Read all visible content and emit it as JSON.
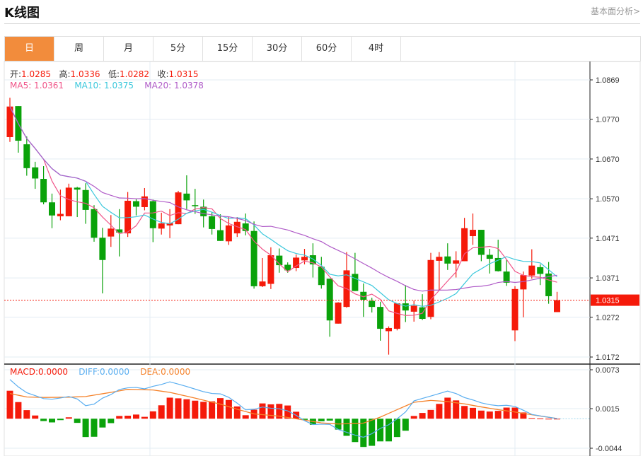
{
  "header": {
    "title": "K线图",
    "link": "基本面分析>"
  },
  "tabs": [
    {
      "label": "日",
      "active": true
    },
    {
      "label": "周"
    },
    {
      "label": "月"
    },
    {
      "label": "5分"
    },
    {
      "label": "15分"
    },
    {
      "label": "30分"
    },
    {
      "label": "60分"
    },
    {
      "label": "4时"
    }
  ],
  "ohlc_legend": {
    "open_label": "开:",
    "open": "1.0285",
    "high_label": "高:",
    "high": "1.0336",
    "low_label": "低:",
    "low": "1.0282",
    "close_label": "收:",
    "close": "1.0315"
  },
  "ma_legend": {
    "ma5": "MA5: 1.0361",
    "ma10": "MA10: 1.0375",
    "ma20": "MA20: 1.0378"
  },
  "macd_legend": {
    "macd": "MACD:0.0000",
    "diff": "DIFF:0.0000",
    "dea": "DEA:0.0000"
  },
  "colors": {
    "up": "#f51a0a",
    "down": "#0aa20a",
    "ma5": "#f0568a",
    "ma10": "#3cc8dc",
    "ma20": "#b05cc8",
    "active_tab": "#f28c3c",
    "dea": "#f5822a",
    "diff": "#5aaef0"
  },
  "chart_data": {
    "type": "candlestick",
    "price_ticks": [
      "1.0869",
      "1.0770",
      "1.0670",
      "1.0570",
      "1.0471",
      "1.0371",
      "1.0272",
      "1.0172"
    ],
    "price_range": [
      1.0172,
      1.0869
    ],
    "last_price": "1.0315",
    "macd_ticks": [
      "0.0073",
      "0.0015",
      "-0.0044"
    ],
    "macd_range": [
      -0.0044,
      0.0073
    ],
    "candles": [
      [
        1.0725,
        1.0824,
        1.0713,
        1.0802
      ],
      [
        1.0803,
        1.0803,
        1.0686,
        1.0716
      ],
      [
        1.0707,
        1.0727,
        1.0628,
        1.0647
      ],
      [
        1.0649,
        1.0663,
        1.0595,
        1.0621
      ],
      [
        1.062,
        1.0652,
        1.0556,
        1.0561
      ],
      [
        1.0561,
        1.0583,
        1.0496,
        1.0528
      ],
      [
        1.0526,
        1.0593,
        1.0516,
        1.0532
      ],
      [
        1.0526,
        1.0608,
        1.0526,
        1.0598
      ],
      [
        1.0598,
        1.06,
        1.0524,
        1.0593
      ],
      [
        1.0592,
        1.0609,
        1.0507,
        1.0542
      ],
      [
        1.0544,
        1.0554,
        1.0462,
        1.0472
      ],
      [
        1.0472,
        1.0497,
        1.0332,
        1.0416
      ],
      [
        1.0475,
        1.0529,
        1.0449,
        1.0495
      ],
      [
        1.0493,
        1.0544,
        1.0425,
        1.0485
      ],
      [
        1.0483,
        1.0587,
        1.0474,
        1.0565
      ],
      [
        1.0564,
        1.0569,
        1.0528,
        1.055
      ],
      [
        1.0549,
        1.0597,
        1.0541,
        1.0576
      ],
      [
        1.0564,
        1.0568,
        1.0461,
        1.0496
      ],
      [
        1.0495,
        1.0535,
        1.048,
        1.0508
      ],
      [
        1.0503,
        1.0544,
        1.0471,
        1.0509
      ],
      [
        1.0506,
        1.059,
        1.0506,
        1.0586
      ],
      [
        1.0583,
        1.0629,
        1.0544,
        1.0566
      ],
      [
        1.0554,
        1.0595,
        1.0532,
        1.0552
      ],
      [
        1.055,
        1.0568,
        1.0498,
        1.0526
      ],
      [
        1.0526,
        1.0537,
        1.048,
        1.0494
      ],
      [
        1.0491,
        1.0531,
        1.0464,
        1.0464
      ],
      [
        1.0463,
        1.0524,
        1.0454,
        1.0503
      ],
      [
        1.0483,
        1.0524,
        1.0474,
        1.0512
      ],
      [
        1.0508,
        1.0533,
        1.0478,
        1.0489
      ],
      [
        1.0489,
        1.0513,
        1.0344,
        1.035
      ],
      [
        1.035,
        1.0421,
        1.0348,
        1.0362
      ],
      [
        1.0356,
        1.0448,
        1.0343,
        1.0428
      ],
      [
        1.0427,
        1.0445,
        1.0384,
        1.0403
      ],
      [
        1.0404,
        1.041,
        1.0384,
        1.039
      ],
      [
        1.0396,
        1.043,
        1.0388,
        1.0422
      ],
      [
        1.0415,
        1.0444,
        1.0405,
        1.0424
      ],
      [
        1.0428,
        1.0458,
        1.0372,
        1.0405
      ],
      [
        1.0399,
        1.0424,
        1.0344,
        1.0353
      ],
      [
        1.0369,
        1.0369,
        1.0223,
        1.0264
      ],
      [
        1.0256,
        1.031,
        1.0256,
        1.0309
      ],
      [
        1.0298,
        1.0436,
        1.0296,
        1.039
      ],
      [
        1.0381,
        1.0434,
        1.0338,
        1.0338
      ],
      [
        1.0336,
        1.0357,
        1.0273,
        1.0316
      ],
      [
        1.0313,
        1.0321,
        1.0284,
        1.0298
      ],
      [
        1.0298,
        1.0311,
        1.0213,
        1.0243
      ],
      [
        1.0237,
        1.0249,
        1.0178,
        1.0245
      ],
      [
        1.0243,
        1.0307,
        1.0239,
        1.0307
      ],
      [
        1.0307,
        1.0353,
        1.026,
        1.0289
      ],
      [
        1.0286,
        1.0314,
        1.0261,
        1.0301
      ],
      [
        1.0297,
        1.033,
        1.0265,
        1.0268
      ],
      [
        1.0273,
        1.0434,
        1.0267,
        1.0416
      ],
      [
        1.0414,
        1.0436,
        1.0341,
        1.0424
      ],
      [
        1.0425,
        1.0458,
        1.0391,
        1.0407
      ],
      [
        1.0407,
        1.0438,
        1.0372,
        1.0415
      ],
      [
        1.0413,
        1.0522,
        1.0413,
        1.0496
      ],
      [
        1.0476,
        1.0533,
        1.0454,
        1.0492
      ],
      [
        1.0492,
        1.0492,
        1.0413,
        1.0429
      ],
      [
        1.0429,
        1.0444,
        1.0382,
        1.0419
      ],
      [
        1.0421,
        1.0467,
        1.0387,
        1.0388
      ],
      [
        1.0387,
        1.0417,
        1.0351,
        1.0359
      ],
      [
        1.0239,
        1.035,
        1.0212,
        1.0343
      ],
      [
        1.0342,
        1.0387,
        1.0272,
        1.0378
      ],
      [
        1.0377,
        1.0443,
        1.0369,
        1.0402
      ],
      [
        1.0398,
        1.0405,
        1.0353,
        1.0381
      ],
      [
        1.0382,
        1.0411,
        1.0306,
        1.0325
      ],
      [
        1.0285,
        1.0336,
        1.0285,
        1.0315
      ]
    ],
    "macd_hist": [
      0.00417,
      0.00248,
      0.00128,
      0.00048,
      -0.00035,
      -0.00055,
      -0.00021,
      0.00021,
      -0.00062,
      -0.00273,
      -0.00269,
      -0.00131,
      -0.00066,
      0.00041,
      0.00045,
      0.00062,
      0.00028,
      0.0011,
      0.002,
      0.00314,
      0.00304,
      0.0029,
      0.00269,
      0.00252,
      0.00259,
      0.00307,
      0.00279,
      0.00183,
      0.00052,
      0.00135,
      0.00228,
      0.00214,
      0.00221,
      0.00197,
      0.00104,
      -0.00017,
      -0.0009,
      -0.00038,
      -0.00028,
      -0.00162,
      -0.00255,
      -0.00348,
      -0.00421,
      -0.00404,
      -0.00338,
      -0.00338,
      -0.00273,
      -0.00179,
      0.00041,
      0.00086,
      0.00131,
      0.00221,
      0.00314,
      0.00273,
      0.0019,
      0.00162,
      0.00121,
      0.00107,
      0.00117,
      0.00166,
      0.00166,
      0.00093,
      0.0001,
      3e-05,
      0.0,
      0.0
    ],
    "dea_keypoints": [
      [
        0,
        0.00376
      ],
      [
        2,
        0.00324
      ],
      [
        4,
        0.00317
      ],
      [
        7,
        0.00321
      ],
      [
        9,
        0.00331
      ],
      [
        12,
        0.00393
      ],
      [
        14,
        0.00438
      ],
      [
        17,
        0.00428
      ],
      [
        19,
        0.00393
      ],
      [
        22,
        0.00307
      ],
      [
        25,
        0.00217
      ],
      [
        27,
        0.00141
      ],
      [
        29,
        0.00072
      ],
      [
        32,
        0.00038
      ],
      [
        35,
        -0.00021
      ],
      [
        37,
        -0.00062
      ],
      [
        39,
        -0.00079
      ],
      [
        42,
        -0.00066
      ],
      [
        44,
        0.00024
      ],
      [
        46,
        0.00135
      ],
      [
        48,
        0.00245
      ],
      [
        50,
        0.00273
      ],
      [
        52,
        0.00255
      ],
      [
        54,
        0.00221
      ],
      [
        56,
        0.00176
      ],
      [
        58,
        0.00135
      ],
      [
        60,
        0.001
      ],
      [
        62,
        0.00059
      ],
      [
        65,
        3e-05
      ]
    ]
  }
}
